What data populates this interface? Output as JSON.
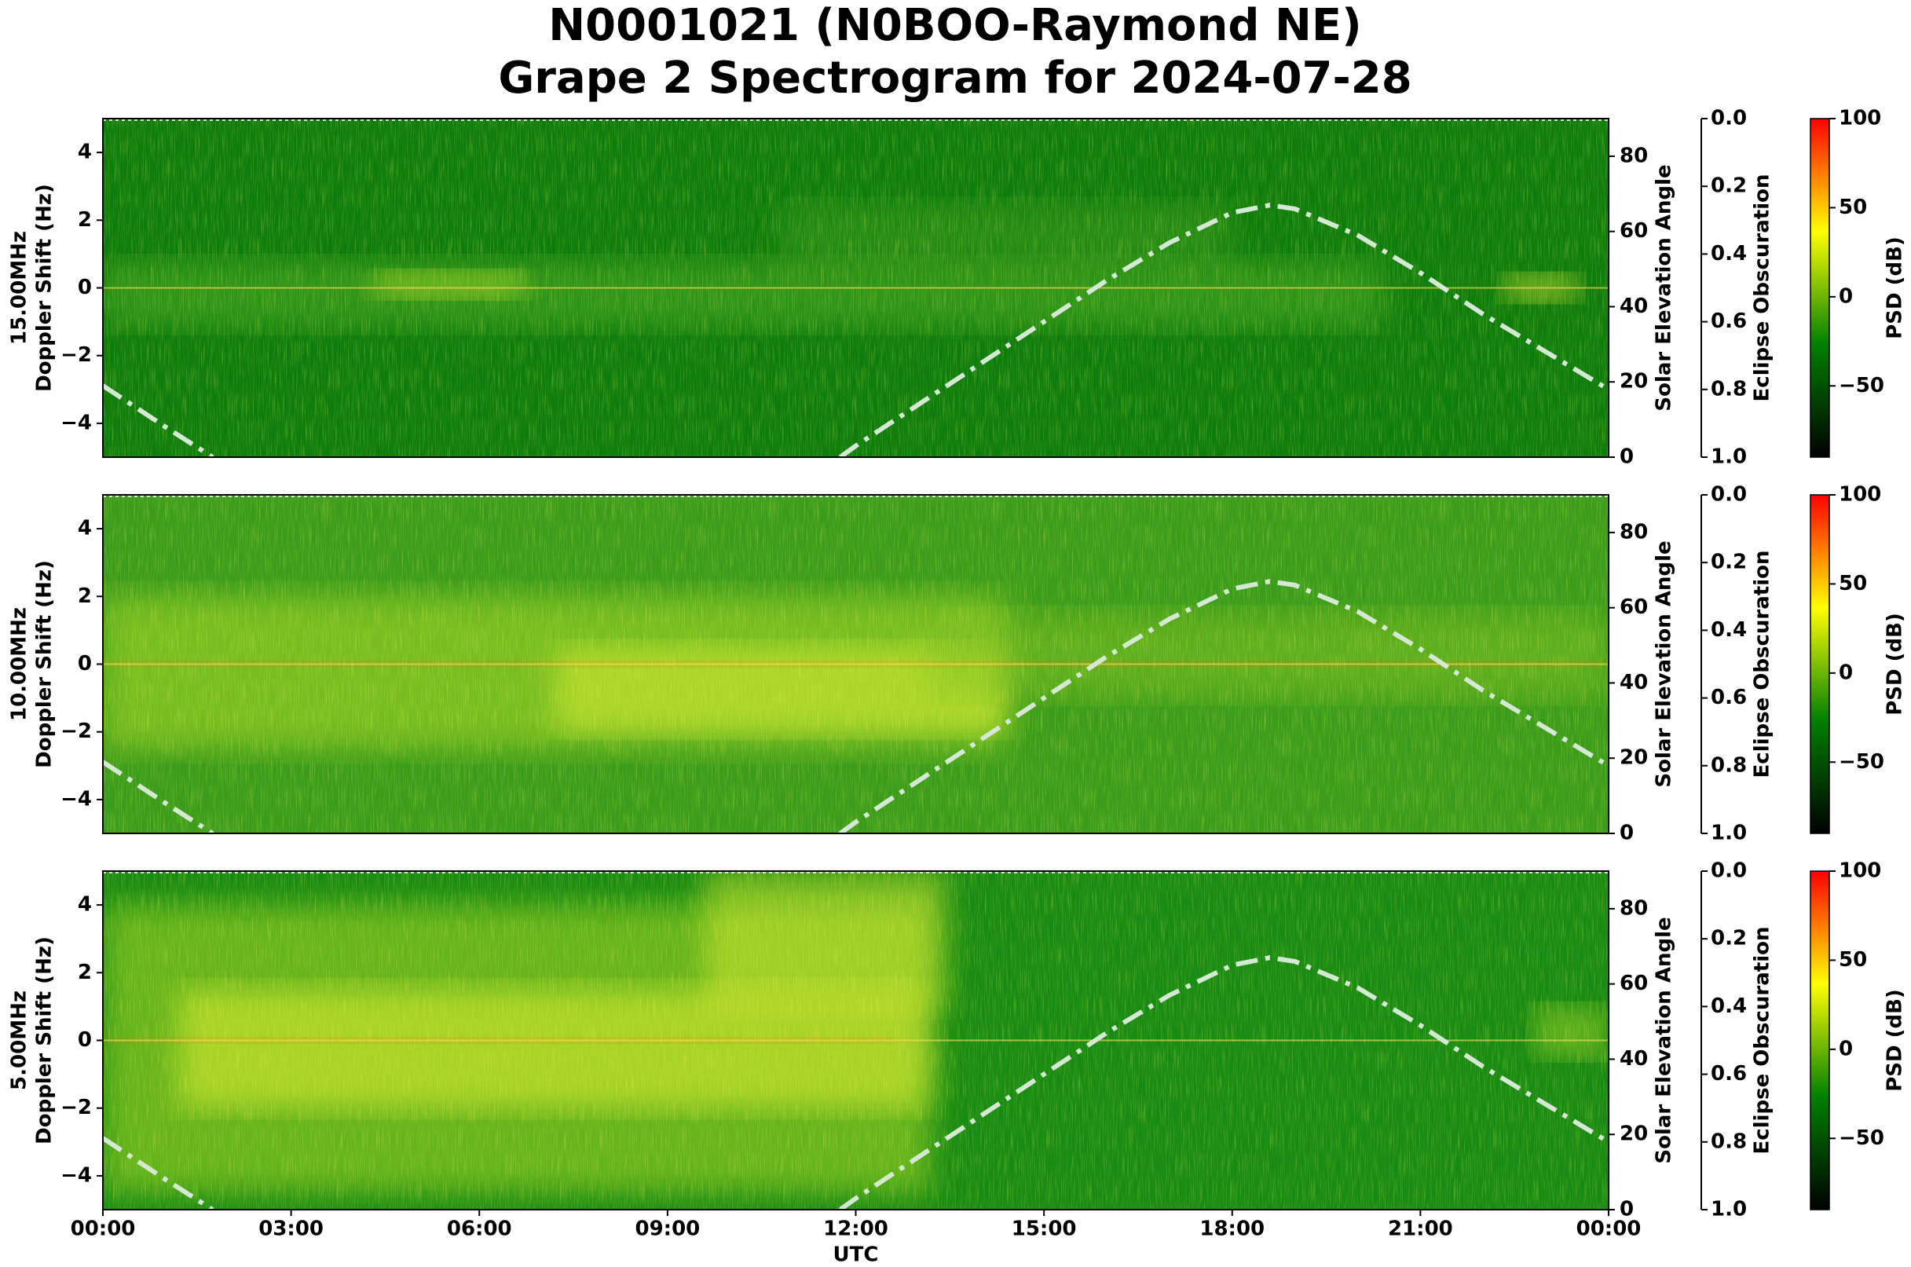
{
  "title": "N0001021 (N0BOO-Raymond NE)",
  "subtitle": "Grape 2 Spectrogram for 2024-07-28",
  "chart_data": [
    {
      "type": "spectrogram",
      "frequency": "15.00MHz",
      "ylabel": "Doppler Shift (Hz)",
      "xlim": [
        0,
        24
      ],
      "ylim": [
        -5,
        5
      ],
      "yticks": [
        {
          "value": -4,
          "label": "−4"
        },
        {
          "value": -2,
          "label": "−2"
        },
        0,
        2,
        4
      ],
      "y2label": "Solar Elevation Angle",
      "y2lim": [
        0,
        90
      ],
      "y2ticks": [
        0,
        20,
        40,
        60,
        80
      ],
      "y3label": "Eclipse Obscuration",
      "y3lim": [
        1,
        0
      ],
      "y3ticks": [
        {
          "value": 0,
          "label": "0.0"
        },
        {
          "value": 0.2,
          "label": "0.2"
        },
        {
          "value": 0.4,
          "label": "0.4"
        },
        {
          "value": 0.6,
          "label": "0.6"
        },
        {
          "value": 0.8,
          "label": "0.8"
        },
        {
          "value": 1,
          "label": "1.0"
        }
      ],
      "colorbar": {
        "label": "PSD (dB)",
        "lim": [
          -90,
          100
        ],
        "ticks": [
          {
            "value": -50,
            "label": "−50"
          },
          0,
          50,
          100
        ],
        "colormap": [
          "#000000",
          "#008000",
          "#ffff00",
          "#ff0000"
        ]
      },
      "series": [
        {
          "axis": "y2",
          "color": "#d4e8d4",
          "x": [
            0,
            1,
            1.75,
            6,
            11.75,
            12,
            13,
            14,
            15,
            16,
            17,
            18,
            18.6,
            19,
            20,
            21,
            22,
            23,
            24
          ],
          "values": [
            19,
            8,
            0,
            null,
            0,
            3,
            14,
            25,
            36,
            47,
            57,
            65,
            67,
            66,
            59,
            49,
            38,
            28,
            18
          ]
        }
      ]
    },
    {
      "type": "spectrogram",
      "frequency": "10.00MHz",
      "ylabel": "Doppler Shift (Hz)",
      "xlim": [
        0,
        24
      ],
      "ylim": [
        -5,
        5
      ],
      "yticks": [
        {
          "value": -4,
          "label": "−4"
        },
        {
          "value": -2,
          "label": "−2"
        },
        0,
        2,
        4
      ],
      "y2label": "Solar Elevation Angle",
      "y2lim": [
        0,
        90
      ],
      "y2ticks": [
        0,
        20,
        40,
        60,
        80
      ],
      "y3label": "Eclipse Obscuration",
      "y3lim": [
        1,
        0
      ],
      "y3ticks": [
        {
          "value": 0,
          "label": "0.0"
        },
        {
          "value": 0.2,
          "label": "0.2"
        },
        {
          "value": 0.4,
          "label": "0.4"
        },
        {
          "value": 0.6,
          "label": "0.6"
        },
        {
          "value": 0.8,
          "label": "0.8"
        },
        {
          "value": 1,
          "label": "1.0"
        }
      ],
      "colorbar": {
        "label": "PSD (dB)",
        "lim": [
          -90,
          100
        ],
        "ticks": [
          {
            "value": -50,
            "label": "−50"
          },
          0,
          50,
          100
        ],
        "colormap": [
          "#000000",
          "#008000",
          "#ffff00",
          "#ff0000"
        ]
      },
      "series": [
        {
          "axis": "y2",
          "color": "#d4e8d4",
          "x": [
            0,
            1,
            1.75,
            6,
            11.75,
            12,
            13,
            14,
            15,
            16,
            17,
            18,
            18.6,
            19,
            20,
            21,
            22,
            23,
            24
          ],
          "values": [
            19,
            8,
            0,
            null,
            0,
            3,
            14,
            25,
            36,
            47,
            57,
            65,
            67,
            66,
            59,
            49,
            38,
            28,
            18
          ]
        }
      ]
    },
    {
      "type": "spectrogram",
      "frequency": "5.00MHz",
      "ylabel": "Doppler Shift (Hz)",
      "xlim": [
        0,
        24
      ],
      "ylim": [
        -5,
        5
      ],
      "xlabel": "UTC",
      "xticks": [
        {
          "value": 0,
          "label": "00:00"
        },
        {
          "value": 3,
          "label": "03:00"
        },
        {
          "value": 6,
          "label": "06:00"
        },
        {
          "value": 9,
          "label": "09:00"
        },
        {
          "value": 12,
          "label": "12:00"
        },
        {
          "value": 15,
          "label": "15:00"
        },
        {
          "value": 18,
          "label": "18:00"
        },
        {
          "value": 21,
          "label": "21:00"
        },
        {
          "value": 24,
          "label": "00:00"
        }
      ],
      "yticks": [
        {
          "value": -4,
          "label": "−4"
        },
        {
          "value": -2,
          "label": "−2"
        },
        0,
        2,
        4
      ],
      "y2label": "Solar Elevation Angle",
      "y2lim": [
        0,
        90
      ],
      "y2ticks": [
        0,
        20,
        40,
        60,
        80
      ],
      "y3label": "Eclipse Obscuration",
      "y3lim": [
        1,
        0
      ],
      "y3ticks": [
        {
          "value": 0,
          "label": "0.0"
        },
        {
          "value": 0.2,
          "label": "0.2"
        },
        {
          "value": 0.4,
          "label": "0.4"
        },
        {
          "value": 0.6,
          "label": "0.6"
        },
        {
          "value": 0.8,
          "label": "0.8"
        },
        {
          "value": 1,
          "label": "1.0"
        }
      ],
      "colorbar": {
        "label": "PSD (dB)",
        "lim": [
          -90,
          100
        ],
        "ticks": [
          {
            "value": -50,
            "label": "−50"
          },
          0,
          50,
          100
        ],
        "colormap": [
          "#000000",
          "#008000",
          "#ffff00",
          "#ff0000"
        ]
      },
      "series": [
        {
          "axis": "y2",
          "color": "#d4e8d4",
          "x": [
            0,
            1,
            1.75,
            6,
            11.75,
            12,
            13,
            14,
            15,
            16,
            17,
            18,
            18.6,
            19,
            20,
            21,
            22,
            23,
            24
          ],
          "values": [
            19,
            8,
            0,
            null,
            0,
            3,
            14,
            25,
            36,
            47,
            57,
            65,
            67,
            66,
            59,
            49,
            38,
            28,
            18
          ]
        }
      ]
    }
  ]
}
